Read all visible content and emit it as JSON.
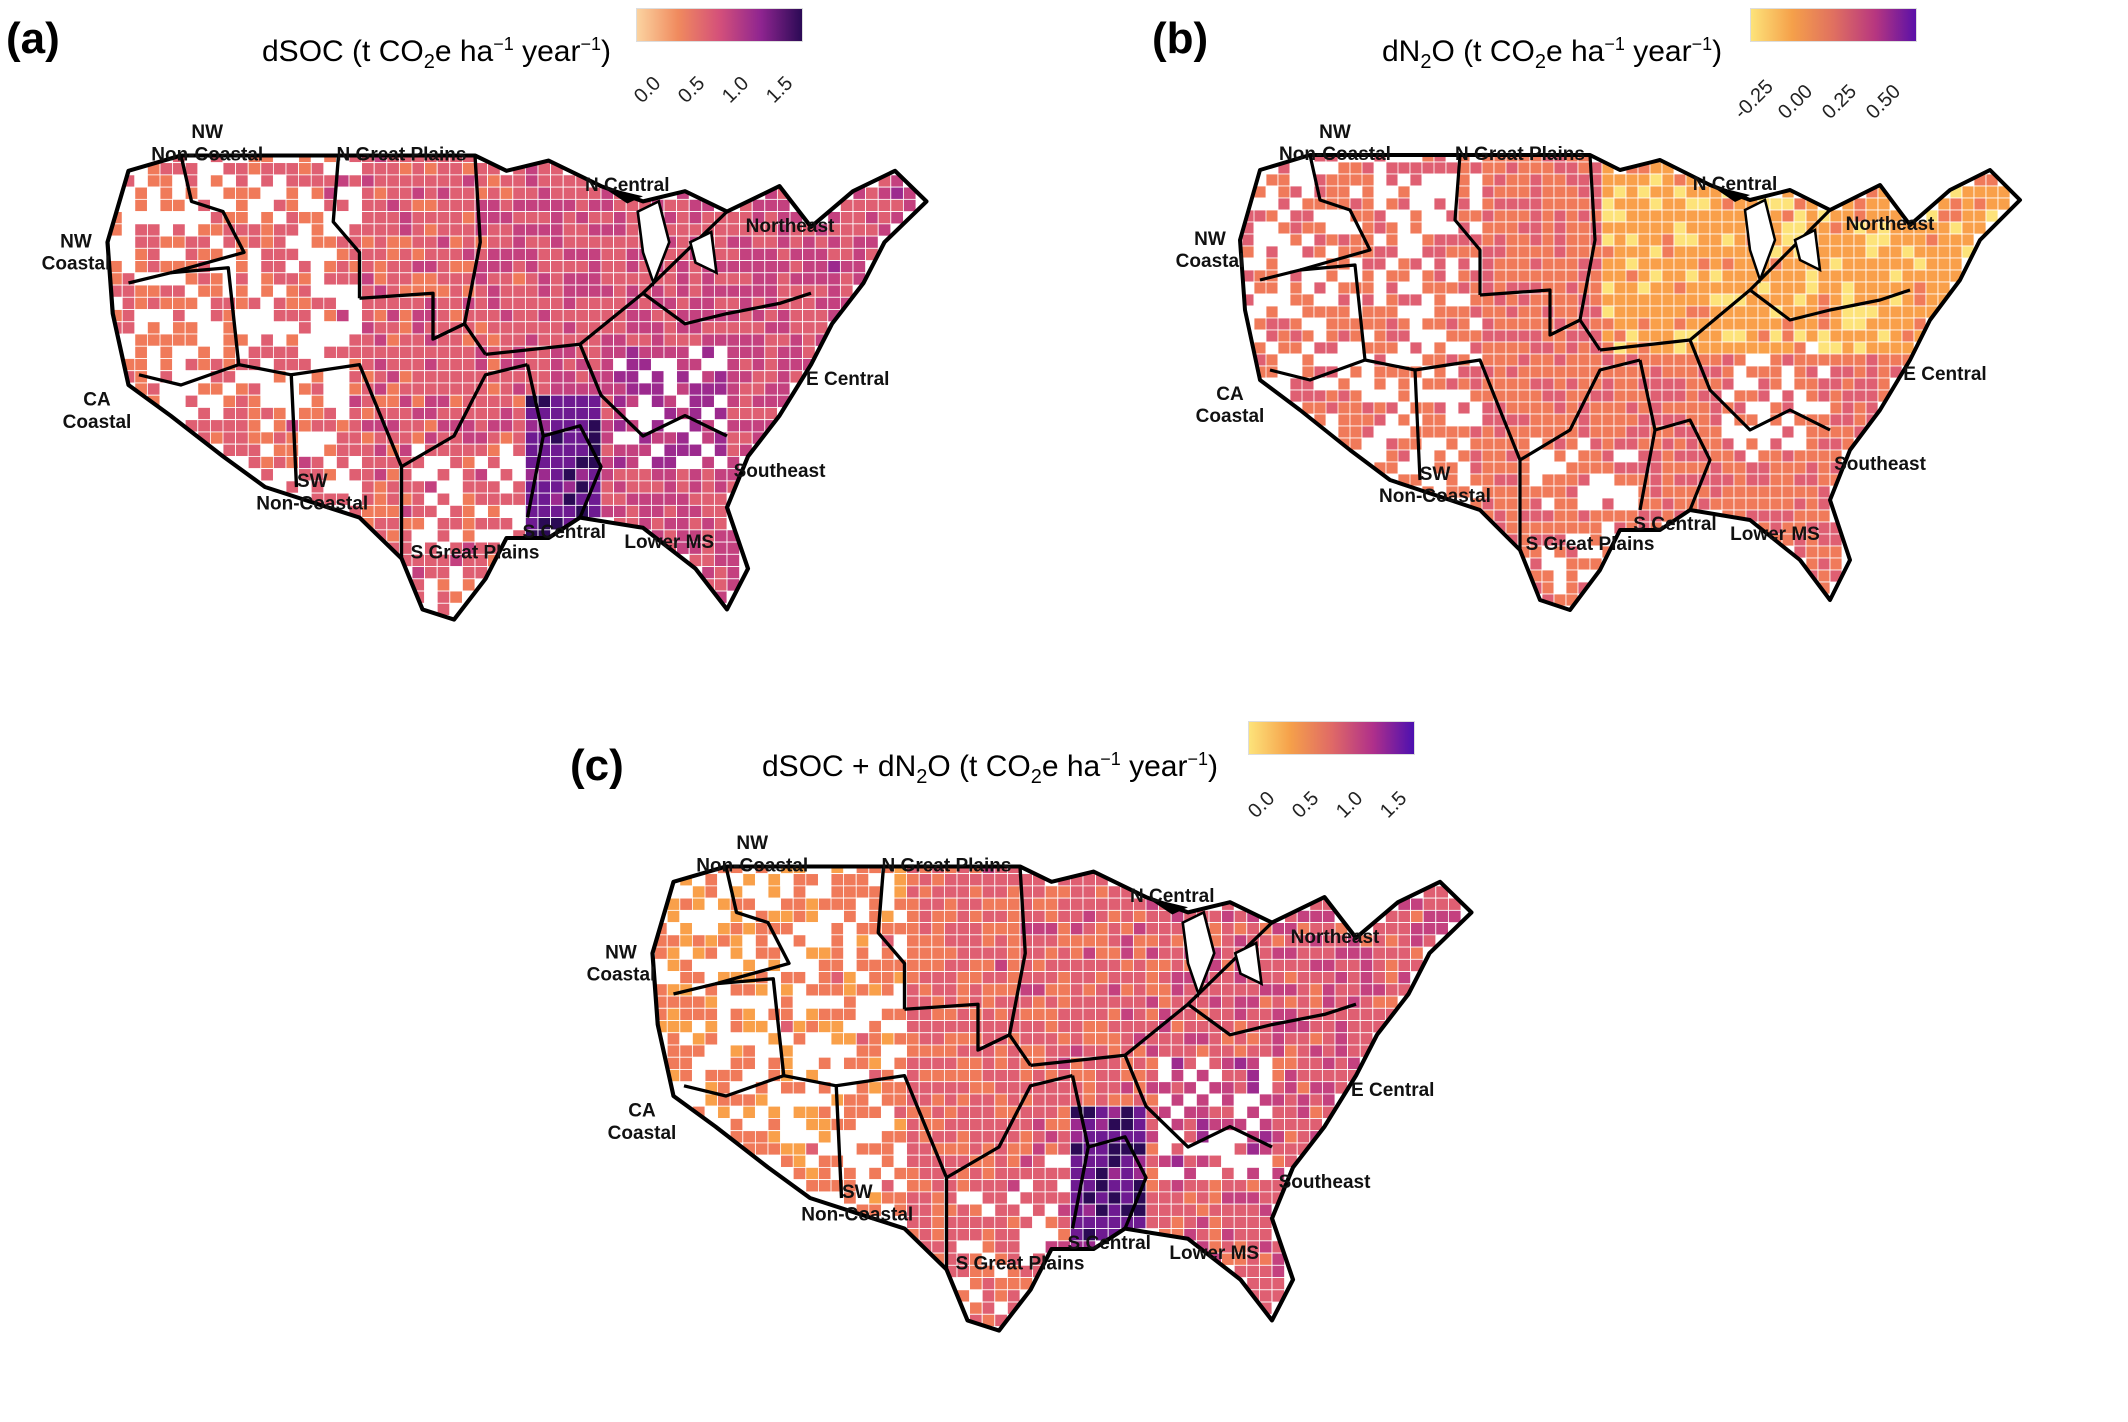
{
  "palette": {
    "stops": [
      "#fde37a",
      "#f9a04a",
      "#f07a5a",
      "#df5f72",
      "#c4417f",
      "#9c2a8e",
      "#6e1a91",
      "#2b0a55"
    ],
    "border": "#000000",
    "county_line": "#ffffff",
    "nodata": "#ffffff"
  },
  "panels": [
    {
      "id": "a",
      "letter": "(a)",
      "legend": {
        "pre": "dSOC (t CO",
        "sub": "2",
        "mid": "e ha",
        "sup1": "−1",
        "mid2": " year",
        "sup2": "−1",
        "post": ")",
        "ticks": [
          "0.0",
          "0.5",
          "1.0",
          "1.5"
        ],
        "gradient": [
          "#fbd3a0",
          "#f08a5e",
          "#d4507a",
          "#8f2590",
          "#2b0a55"
        ]
      },
      "labels": {
        "nw_noncoastal_1": "NW",
        "nw_noncoastal_2": "Non-Coastal",
        "n_great_plains": "N Great Plains",
        "n_central": "N Central",
        "northeast": "Northeast",
        "nw_coastal_1": "NW",
        "nw_coastal_2": "Coastal",
        "ca_coastal_1": "CA",
        "ca_coastal_2": "Coastal",
        "e_central": "E Central",
        "southeast": "Southeast",
        "sw_noncoastal_1": "SW",
        "sw_noncoastal_2": "Non-Coastal",
        "s_central": "S Central",
        "lower_ms": "Lower MS",
        "s_great_plains": "S Great Plains"
      }
    },
    {
      "id": "b",
      "letter": "(b)",
      "legend": {
        "pre": "dN",
        "sub": "2",
        "mid": "O (t CO",
        "sub2": "2",
        "mid2": "e ha",
        "sup1": "−1",
        "mid3": " year",
        "sup2": "−1",
        "post": ")",
        "ticks": [
          "-0.25",
          "0.00",
          "0.25",
          "0.50"
        ],
        "gradient": [
          "#fde37a",
          "#f5a04a",
          "#e07060",
          "#b8377f",
          "#5a10a8"
        ]
      },
      "labels": {
        "nw_noncoastal_1": "NW",
        "nw_noncoastal_2": "Non-Coastal",
        "n_great_plains": "N Great Plains",
        "n_central": "N Central",
        "northeast": "Northeast",
        "nw_coastal_1": "NW",
        "nw_coastal_2": "Coastal",
        "ca_coastal_1": "CA",
        "ca_coastal_2": "Coastal",
        "e_central": "E Central",
        "southeast": "Southeast",
        "sw_noncoastal_1": "SW",
        "sw_noncoastal_2": "Non-Coastal",
        "s_central": "S Central",
        "lower_ms": "Lower MS",
        "s_great_plains": "S Great Plains"
      }
    },
    {
      "id": "c",
      "letter": "(c)",
      "legend": {
        "pre": "dSOC + dN",
        "sub": "2",
        "mid": "O (t CO",
        "sub2": "2",
        "mid2": "e ha",
        "sup1": "−1",
        "mid3": " year",
        "sup2": "−1",
        "post": ")",
        "ticks": [
          "0.0",
          "0.5",
          "1.0",
          "1.5"
        ],
        "gradient": [
          "#fde37a",
          "#f5a04a",
          "#e06a66",
          "#b0308a",
          "#4c10b0"
        ]
      },
      "labels": {
        "nw_noncoastal_1": "NW",
        "nw_noncoastal_2": "Non-Coastal",
        "n_great_plains": "N Great Plains",
        "n_central": "N Central",
        "northeast": "Northeast",
        "nw_coastal_1": "NW",
        "nw_coastal_2": "Coastal",
        "ca_coastal_1": "CA",
        "ca_coastal_2": "Coastal",
        "e_central": "E Central",
        "southeast": "Southeast",
        "sw_noncoastal_1": "SW",
        "sw_noncoastal_2": "Non-Coastal",
        "s_central": "S Central",
        "lower_ms": "Lower MS",
        "s_great_plains": "S Great Plains"
      }
    }
  ]
}
